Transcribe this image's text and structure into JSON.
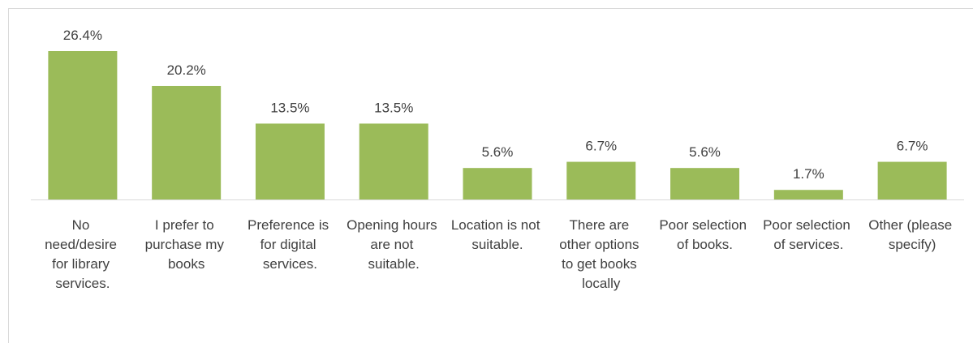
{
  "chart_data": {
    "type": "bar",
    "categories": [
      "No need/desire for library services.",
      "I prefer to purchase my books",
      "Preference is for digital services.",
      "Opening hours are not suitable.",
      "Location is not suitable.",
      "There are other options to get books locally",
      "Poor selection of books.",
      "Poor selection of services.",
      "Other (please specify)"
    ],
    "values": [
      26.4,
      20.2,
      13.5,
      13.5,
      5.6,
      6.7,
      5.6,
      1.7,
      6.7
    ],
    "value_labels": [
      "26.4%",
      "20.2%",
      "13.5%",
      "13.5%",
      "5.6%",
      "6.7%",
      "5.6%",
      "1.7%",
      "6.7%"
    ],
    "color": "#9bbb59"
  }
}
